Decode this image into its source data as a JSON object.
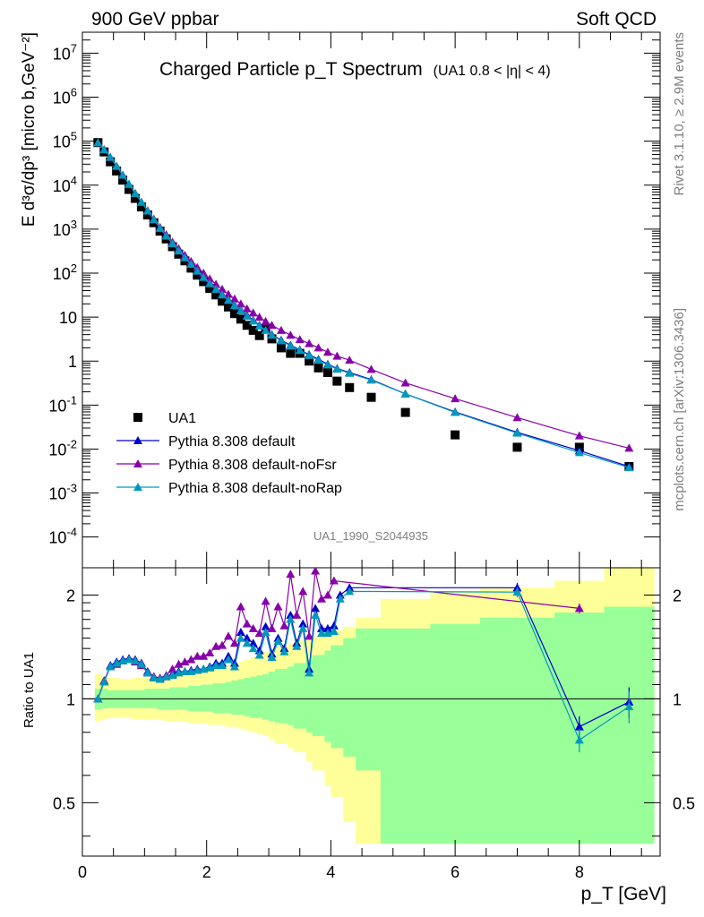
{
  "header": {
    "left": "900 GeV ppbar",
    "right": "Soft QCD"
  },
  "side": {
    "rivet": "Rivet 3.1.10, ≥ 2.9M events",
    "mcplots": "mcplots.cern.ch [arXiv:1306.3436]"
  },
  "chart_data": [
    {
      "type": "scatter",
      "title": "Charged Particle p_T Spectrum",
      "subtitle": "(UA1 0.8 < |η| < 4)",
      "ylabel": "E d³σ/dp³ [micro b,GeV⁻²]",
      "yscale": "log",
      "ylim": [
        2e-05,
        30000000
      ],
      "xlim": [
        0,
        9.3
      ],
      "watermark": "UA1_1990_S2044935",
      "legend_position": "bottom-left",
      "y_tick_labels": [
        "10^-4",
        "10^-3",
        "10^-2",
        "10^-1",
        "1",
        "10",
        "10^2",
        "10^3",
        "10^4",
        "10^5",
        "10^6",
        "10^7"
      ],
      "series": [
        {
          "name": "UA1",
          "color": "#000000",
          "marker": "square",
          "x": [
            0.25,
            0.35,
            0.45,
            0.55,
            0.65,
            0.75,
            0.85,
            0.95,
            1.05,
            1.15,
            1.25,
            1.35,
            1.45,
            1.55,
            1.65,
            1.75,
            1.85,
            1.95,
            2.05,
            2.15,
            2.25,
            2.35,
            2.45,
            2.55,
            2.65,
            2.75,
            2.85,
            2.95,
            3.05,
            3.2,
            3.35,
            3.5,
            3.65,
            3.8,
            3.95,
            4.1,
            4.3,
            4.65,
            5.2,
            6.0,
            7.0,
            8.0,
            8.8
          ],
          "y": [
            93000,
            57000,
            34000,
            21000,
            13000,
            8000,
            5000,
            3200,
            2100,
            1400,
            900,
            600,
            400,
            270,
            190,
            130,
            90,
            64,
            45,
            32,
            23,
            17,
            12,
            9,
            6.5,
            5,
            3.8,
            5.5,
            3.2,
            2,
            1.5,
            1.5,
            1.0,
            0.7,
            0.55,
            0.35,
            0.25,
            0.15,
            0.068,
            0.021,
            0.011,
            0.011,
            0.004
          ]
        },
        {
          "name": "Pythia 8.308 default",
          "color": "#0000cc",
          "marker": "triangle",
          "x": [
            0.25,
            0.35,
            0.45,
            0.55,
            0.65,
            0.75,
            0.85,
            0.95,
            1.05,
            1.15,
            1.25,
            1.35,
            1.45,
            1.55,
            1.65,
            1.75,
            1.85,
            1.95,
            2.05,
            2.15,
            2.25,
            2.35,
            2.45,
            2.55,
            2.65,
            2.75,
            2.85,
            2.95,
            3.05,
            3.2,
            3.35,
            3.5,
            3.65,
            3.8,
            3.95,
            4.1,
            4.3,
            4.65,
            5.2,
            6.0,
            7.0,
            8.0,
            8.8
          ],
          "y": [
            92000,
            64000,
            43000,
            27000,
            17000,
            10500,
            6500,
            4100,
            2600,
            1650,
            1050,
            700,
            470,
            320,
            225,
            160,
            115,
            82,
            60,
            44,
            33,
            25,
            19,
            14.5,
            11,
            8.5,
            6.5,
            5.1,
            4.0,
            3.0,
            2.3,
            1.8,
            1.4,
            1.1,
            0.85,
            0.68,
            0.55,
            0.38,
            0.18,
            0.07,
            0.024,
            0.0092,
            0.004
          ]
        },
        {
          "name": "Pythia 8.308 default-noFsr",
          "color": "#8800aa",
          "marker": "triangle",
          "x": [
            0.25,
            0.35,
            0.45,
            0.55,
            0.65,
            0.75,
            0.85,
            0.95,
            1.05,
            1.15,
            1.25,
            1.35,
            1.45,
            1.55,
            1.65,
            1.75,
            1.85,
            1.95,
            2.05,
            2.15,
            2.25,
            2.35,
            2.45,
            2.55,
            2.65,
            2.75,
            2.85,
            2.95,
            3.05,
            3.2,
            3.35,
            3.5,
            3.65,
            3.8,
            3.95,
            4.1,
            4.3,
            4.65,
            5.2,
            6.0,
            7.0,
            8.0,
            8.8
          ],
          "y": [
            92000,
            64000,
            43000,
            27000,
            17000,
            10500,
            6500,
            4100,
            2650,
            1700,
            1100,
            750,
            510,
            360,
            255,
            185,
            135,
            100,
            74,
            56,
            43,
            33,
            26,
            20,
            15.5,
            12.5,
            10,
            8,
            6.5,
            5,
            3.9,
            3.1,
            2.5,
            2.0,
            1.6,
            1.3,
            1.05,
            0.65,
            0.32,
            0.14,
            0.052,
            0.02,
            0.0105
          ]
        },
        {
          "name": "Pythia 8.308 default-noRap",
          "color": "#0099bb",
          "marker": "triangle",
          "x": [
            0.25,
            0.35,
            0.45,
            0.55,
            0.65,
            0.75,
            0.85,
            0.95,
            1.05,
            1.15,
            1.25,
            1.35,
            1.45,
            1.55,
            1.65,
            1.75,
            1.85,
            1.95,
            2.05,
            2.15,
            2.25,
            2.35,
            2.45,
            2.55,
            2.65,
            2.75,
            2.85,
            2.95,
            3.05,
            3.2,
            3.35,
            3.5,
            3.65,
            3.8,
            3.95,
            4.1,
            4.3,
            4.65,
            5.2,
            6.0,
            7.0,
            8.0,
            8.8
          ],
          "y": [
            92000,
            64000,
            43000,
            27000,
            17000,
            10500,
            6500,
            4100,
            2600,
            1650,
            1050,
            700,
            470,
            320,
            225,
            160,
            112,
            80,
            58,
            43,
            32,
            24,
            18.5,
            14,
            10.5,
            8.2,
            6.3,
            5.0,
            3.9,
            2.9,
            2.2,
            1.75,
            1.35,
            1.05,
            0.82,
            0.66,
            0.53,
            0.37,
            0.18,
            0.068,
            0.023,
            0.0083,
            0.0038
          ]
        }
      ]
    },
    {
      "type": "line",
      "ylabel": "Ratio to UA1",
      "xlabel": "p_T [GeV]",
      "yscale": "log",
      "ylim": [
        0.35,
        2.4
      ],
      "xlim": [
        0,
        9.3
      ],
      "x_tick_labels": [
        "0",
        "2",
        "4",
        "6",
        "8"
      ],
      "y_tick_labels": [
        "0.5",
        "1",
        "2"
      ],
      "bands": {
        "x_edges": [
          0.2,
          0.3,
          0.4,
          0.5,
          0.6,
          0.7,
          0.8,
          0.9,
          1.0,
          1.1,
          1.2,
          1.3,
          1.4,
          1.5,
          1.6,
          1.7,
          1.8,
          1.9,
          2.0,
          2.1,
          2.2,
          2.3,
          2.4,
          2.5,
          2.6,
          2.7,
          2.8,
          2.9,
          3.0,
          3.1,
          3.3,
          3.4,
          3.6,
          3.7,
          3.9,
          4.0,
          4.2,
          4.4,
          4.8,
          5.6,
          6.4,
          7.6,
          8.4,
          9.2
        ],
        "yellow_lo": [
          0.86,
          0.87,
          0.88,
          0.88,
          0.88,
          0.88,
          0.87,
          0.87,
          0.87,
          0.87,
          0.87,
          0.86,
          0.86,
          0.86,
          0.86,
          0.85,
          0.85,
          0.85,
          0.84,
          0.84,
          0.84,
          0.83,
          0.83,
          0.82,
          0.81,
          0.8,
          0.79,
          0.78,
          0.76,
          0.74,
          0.72,
          0.7,
          0.66,
          0.62,
          0.56,
          0.52,
          0.44,
          0.38,
          0.38,
          0.38,
          0.38,
          0.38,
          0.38
        ],
        "yellow_hi": [
          1.18,
          1.16,
          1.15,
          1.15,
          1.14,
          1.14,
          1.15,
          1.15,
          1.15,
          1.16,
          1.16,
          1.17,
          1.17,
          1.18,
          1.19,
          1.19,
          1.2,
          1.21,
          1.22,
          1.23,
          1.24,
          1.25,
          1.26,
          1.28,
          1.3,
          1.32,
          1.34,
          1.37,
          1.4,
          1.42,
          1.45,
          1.48,
          1.5,
          1.52,
          1.55,
          1.58,
          1.62,
          1.72,
          1.95,
          2.05,
          2.1,
          2.2,
          2.4
        ],
        "green_lo": [
          0.93,
          0.94,
          0.94,
          0.94,
          0.94,
          0.94,
          0.94,
          0.94,
          0.94,
          0.94,
          0.93,
          0.93,
          0.93,
          0.93,
          0.93,
          0.92,
          0.92,
          0.92,
          0.92,
          0.91,
          0.91,
          0.91,
          0.9,
          0.9,
          0.89,
          0.88,
          0.88,
          0.87,
          0.86,
          0.85,
          0.84,
          0.82,
          0.8,
          0.78,
          0.75,
          0.72,
          0.68,
          0.62,
          0.38,
          0.38,
          0.38,
          0.38,
          0.38
        ],
        "green_hi": [
          1.07,
          1.07,
          1.06,
          1.06,
          1.06,
          1.06,
          1.06,
          1.06,
          1.07,
          1.07,
          1.07,
          1.07,
          1.08,
          1.08,
          1.08,
          1.09,
          1.09,
          1.1,
          1.1,
          1.11,
          1.11,
          1.12,
          1.13,
          1.14,
          1.15,
          1.16,
          1.17,
          1.18,
          1.2,
          1.22,
          1.24,
          1.27,
          1.3,
          1.34,
          1.38,
          1.43,
          1.5,
          1.6,
          1.6,
          1.65,
          1.72,
          1.78,
          1.85
        ]
      },
      "series": [
        {
          "name": "Pythia 8.308 default",
          "color": "#0000cc",
          "x": [
            0.25,
            0.35,
            0.45,
            0.55,
            0.65,
            0.75,
            0.85,
            0.95,
            1.05,
            1.15,
            1.25,
            1.35,
            1.45,
            1.55,
            1.65,
            1.75,
            1.85,
            1.95,
            2.05,
            2.15,
            2.25,
            2.35,
            2.45,
            2.55,
            2.65,
            2.75,
            2.85,
            2.95,
            3.05,
            3.15,
            3.25,
            3.35,
            3.45,
            3.55,
            3.65,
            3.75,
            3.85,
            3.95,
            4.05,
            4.15,
            4.3,
            7.0,
            8.0,
            8.8
          ],
          "y": [
            1.0,
            1.12,
            1.25,
            1.28,
            1.3,
            1.31,
            1.3,
            1.27,
            1.2,
            1.16,
            1.14,
            1.16,
            1.18,
            1.2,
            1.2,
            1.21,
            1.22,
            1.22,
            1.24,
            1.27,
            1.27,
            1.33,
            1.27,
            1.56,
            1.5,
            1.45,
            1.38,
            1.62,
            1.35,
            1.5,
            1.4,
            1.75,
            1.45,
            1.65,
            1.22,
            1.83,
            1.6,
            1.6,
            1.63,
            2.0,
            2.1,
            2.1,
            0.83,
            0.98
          ],
          "err": [
            0,
            0,
            0,
            0,
            0,
            0,
            0,
            0,
            0,
            0,
            0,
            0,
            0,
            0,
            0,
            0,
            0,
            0,
            0,
            0,
            0,
            0,
            0,
            0,
            0,
            0,
            0,
            0,
            0,
            0,
            0,
            0,
            0,
            0,
            0,
            0,
            0,
            0,
            0,
            0,
            0,
            0.07,
            0.06,
            0.1
          ]
        },
        {
          "name": "Pythia 8.308 default-noFsr",
          "color": "#8800aa",
          "x": [
            0.25,
            0.35,
            0.45,
            0.55,
            0.65,
            0.75,
            0.85,
            0.95,
            1.05,
            1.15,
            1.25,
            1.35,
            1.45,
            1.55,
            1.65,
            1.75,
            1.85,
            1.95,
            2.05,
            2.15,
            2.25,
            2.35,
            2.45,
            2.55,
            2.65,
            2.75,
            2.85,
            2.95,
            3.05,
            3.15,
            3.25,
            3.35,
            3.45,
            3.55,
            3.65,
            3.75,
            3.85,
            3.95,
            4.05,
            8.0
          ],
          "y": [
            1.0,
            1.13,
            1.24,
            1.26,
            1.29,
            1.3,
            1.28,
            1.25,
            1.19,
            1.16,
            1.15,
            1.17,
            1.22,
            1.26,
            1.28,
            1.3,
            1.33,
            1.33,
            1.36,
            1.42,
            1.43,
            1.52,
            1.45,
            1.85,
            1.65,
            1.6,
            1.55,
            1.92,
            1.6,
            1.85,
            1.63,
            2.3,
            1.75,
            2.05,
            1.52,
            2.35,
            1.95,
            2.0,
            2.2,
            1.83
          ],
          "err": [
            0,
            0,
            0,
            0,
            0,
            0,
            0,
            0,
            0,
            0,
            0,
            0,
            0,
            0,
            0,
            0,
            0,
            0,
            0,
            0,
            0,
            0,
            0,
            0,
            0,
            0,
            0,
            0,
            0,
            0,
            0,
            0,
            0,
            0,
            0,
            0,
            0,
            0,
            0,
            0.06
          ]
        },
        {
          "name": "Pythia 8.308 default-noRap",
          "color": "#0099bb",
          "x": [
            0.25,
            0.35,
            0.45,
            0.55,
            0.65,
            0.75,
            0.85,
            0.95,
            1.05,
            1.15,
            1.25,
            1.35,
            1.45,
            1.55,
            1.65,
            1.75,
            1.85,
            1.95,
            2.05,
            2.15,
            2.25,
            2.35,
            2.45,
            2.55,
            2.65,
            2.75,
            2.85,
            2.95,
            3.05,
            3.15,
            3.25,
            3.35,
            3.45,
            3.55,
            3.65,
            3.75,
            3.85,
            3.95,
            4.05,
            4.15,
            4.3,
            7.0,
            8.0,
            8.8
          ],
          "y": [
            1.0,
            1.12,
            1.24,
            1.27,
            1.29,
            1.3,
            1.29,
            1.26,
            1.19,
            1.15,
            1.14,
            1.16,
            1.17,
            1.19,
            1.2,
            1.2,
            1.21,
            1.22,
            1.23,
            1.25,
            1.25,
            1.3,
            1.24,
            1.5,
            1.45,
            1.4,
            1.34,
            1.56,
            1.32,
            1.47,
            1.37,
            1.7,
            1.42,
            1.6,
            1.19,
            1.75,
            1.55,
            1.55,
            1.57,
            1.95,
            2.05,
            2.04,
            0.76,
            0.95
          ],
          "err": [
            0,
            0,
            0,
            0,
            0,
            0,
            0,
            0,
            0,
            0,
            0,
            0,
            0,
            0,
            0,
            0,
            0,
            0,
            0,
            0,
            0,
            0,
            0,
            0,
            0,
            0,
            0,
            0,
            0,
            0,
            0,
            0,
            0,
            0,
            0,
            0,
            0,
            0,
            0,
            0,
            0,
            0.07,
            0.06,
            0.1
          ]
        }
      ]
    }
  ]
}
